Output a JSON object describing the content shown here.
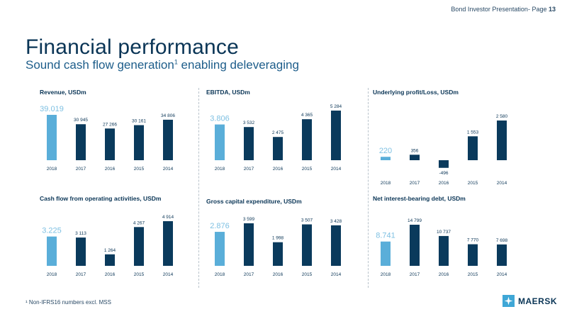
{
  "header": {
    "presentation": "Bond Investor Presentation- Page",
    "page": "13"
  },
  "title": "Financial performance",
  "subtitle": {
    "text": "Sound cash flow generation",
    "sup": "1",
    "rest": " enabling deleveraging"
  },
  "footnote": "¹ Non-IFRS16 numbers excl. MSS",
  "logo": {
    "text": "MAERSK",
    "icon": "star-icon"
  },
  "colors": {
    "highlight": "#5aaed9",
    "bar": "#0a3a5c",
    "text": "#0a3556",
    "highlight_text": "#7ec0e2"
  },
  "chart_data": [
    {
      "type": "bar",
      "title": "Revenue, USDm",
      "categories": [
        "2018",
        "2017",
        "2016",
        "2015",
        "2014"
      ],
      "values": [
        39019,
        30945,
        27266,
        30161,
        34806
      ],
      "labels": [
        "39.019",
        "30 945",
        "27 266",
        "30 161",
        "34 806"
      ],
      "ylim": [
        0,
        40000
      ]
    },
    {
      "type": "bar",
      "title": "EBITDA, USDm",
      "categories": [
        "2018",
        "2017",
        "2016",
        "2015",
        "2014"
      ],
      "values": [
        3806,
        3532,
        2475,
        4365,
        5284
      ],
      "labels": [
        "3.806",
        "3 532",
        "2 475",
        "4 365",
        "5 284"
      ],
      "ylim": [
        0,
        5284
      ]
    },
    {
      "type": "bar",
      "title": "Underlying profit/Loss, USDm",
      "categories": [
        "2018",
        "2017",
        "2016",
        "2015",
        "2014"
      ],
      "values": [
        220,
        356,
        -496,
        1553,
        2580
      ],
      "labels": [
        "220",
        "356",
        "-496",
        "1 553",
        "2 580"
      ],
      "ylim": [
        -496,
        2580
      ]
    },
    {
      "type": "bar",
      "title": "Cash flow from operating activities, USDm",
      "categories": [
        "2018",
        "2017",
        "2016",
        "2015",
        "2014"
      ],
      "values": [
        3225,
        3113,
        1264,
        4267,
        4914
      ],
      "labels": [
        "3.225",
        "3 113",
        "1 264",
        "4 267",
        "4 914"
      ],
      "ylim": [
        0,
        4914
      ]
    },
    {
      "type": "bar",
      "title": "Gross capital expenditure, USDm",
      "categories": [
        "2018",
        "2017",
        "2016",
        "2015",
        "2014"
      ],
      "values": [
        2876,
        3599,
        1998,
        3507,
        3428
      ],
      "labels": [
        "2.876",
        "3 599",
        "1 998",
        "3 507",
        "3 428"
      ],
      "ylim": [
        0,
        3599
      ]
    },
    {
      "type": "bar",
      "title": "Net interest-bearing debt, USDm",
      "categories": [
        "2018",
        "2017",
        "2016",
        "2015",
        "2014"
      ],
      "values": [
        8741,
        14799,
        10737,
        7770,
        7698
      ],
      "labels": [
        "8.741",
        "14 799",
        "10 737",
        "7 770",
        "7 698"
      ],
      "ylim": [
        0,
        14799
      ]
    }
  ]
}
